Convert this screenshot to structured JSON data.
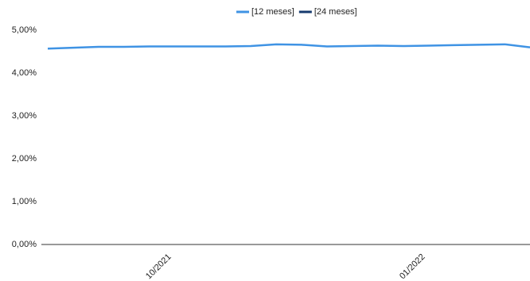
{
  "chart_data": {
    "type": "line",
    "categories": [
      null,
      null,
      null,
      null,
      null,
      "10/2021",
      null,
      null,
      null,
      null,
      null,
      null,
      null,
      null,
      null,
      "01/2022",
      null,
      null,
      null,
      null
    ],
    "series": [
      {
        "name": "[12 meses]",
        "color": "#3f93e4",
        "values": [
          4.57,
          4.59,
          4.61,
          4.61,
          4.62,
          4.62,
          4.62,
          4.62,
          4.63,
          4.67,
          4.66,
          4.62,
          4.63,
          4.64,
          4.63,
          4.64,
          4.65,
          4.66,
          4.67,
          4.6
        ]
      },
      {
        "name": "[24 meses]",
        "color": "#163a6e",
        "values": [
          null,
          null,
          null,
          null,
          null,
          null,
          null,
          null,
          null,
          null,
          null,
          null,
          null,
          null,
          null,
          null,
          null,
          null,
          null,
          null
        ]
      }
    ],
    "ylim": [
      0,
      5
    ],
    "yticks": [
      {
        "value": 0,
        "label": "0,00%"
      },
      {
        "value": 1,
        "label": "1,00%"
      },
      {
        "value": 2,
        "label": "2,00%"
      },
      {
        "value": 3,
        "label": "3,00%"
      },
      {
        "value": 4,
        "label": "4,00%"
      },
      {
        "value": 5,
        "label": "5,00%"
      }
    ],
    "grid": false,
    "legend": "top"
  }
}
